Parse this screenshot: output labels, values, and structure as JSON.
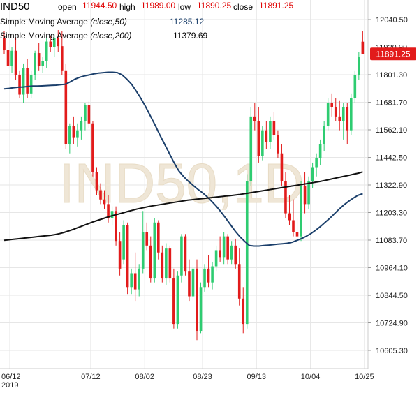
{
  "header": {
    "symbol": "IND50",
    "open_label": "open",
    "open_value": "11944.50",
    "high_label": "high",
    "high_value": "11989.00",
    "low_label": "low",
    "low_value": "11890.25",
    "close_label": "close",
    "close_value": "11891.25"
  },
  "indicators": [
    {
      "prefix": "Simple Moving Average ",
      "params": "(close,50)",
      "value": "11285.12",
      "color": "#1b3f6b"
    },
    {
      "prefix": "Simple Moving Average ",
      "params": "(close,200)",
      "value": "11379.69",
      "color": "#111111"
    }
  ],
  "watermark": "IND50,1D",
  "last_price_label": "11891.25",
  "colors": {
    "up": "#2ecc71",
    "down": "#e21b1b",
    "sma50": "#1b3f6b",
    "sma200": "#111111",
    "grid": "#e6e6e6",
    "price_tag": "#e21b1b"
  },
  "chart_data": {
    "type": "candlestick",
    "interval": "1D",
    "y_ticks": [
      "12040.50",
      "11920.90",
      "11801.30",
      "11681.70",
      "11562.10",
      "11442.50",
      "11322.90",
      "11203.30",
      "11083.70",
      "10964.10",
      "10844.50",
      "10724.90",
      "10605.30"
    ],
    "ylim": [
      10550,
      12120
    ],
    "x_ticks": [
      {
        "label": "06/12",
        "sub": "2019",
        "index": 0
      },
      {
        "label": "07/12",
        "index": 21
      },
      {
        "label": "08/02",
        "index": 35
      },
      {
        "label": "08/23",
        "index": 50
      },
      {
        "label": "09/13",
        "index": 64
      },
      {
        "label": "10/04",
        "index": 78
      },
      {
        "label": "10/25",
        "index": 92
      }
    ],
    "candles": [
      [
        11960,
        11990,
        11890,
        11910
      ],
      [
        11910,
        11925,
        11825,
        11840
      ],
      [
        11840,
        11920,
        11810,
        11905
      ],
      [
        11905,
        11960,
        11780,
        11800
      ],
      [
        11800,
        11820,
        11700,
        11715
      ],
      [
        11715,
        11850,
        11680,
        11830
      ],
      [
        11830,
        11870,
        11700,
        11720
      ],
      [
        11720,
        11820,
        11700,
        11800
      ],
      [
        11800,
        11905,
        11780,
        11895
      ],
      [
        11895,
        11940,
        11820,
        11840
      ],
      [
        11840,
        11880,
        11810,
        11860
      ],
      [
        11860,
        11960,
        11830,
        11945
      ],
      [
        11945,
        11970,
        11900,
        11920
      ],
      [
        11920,
        11975,
        11880,
        11960
      ],
      [
        11960,
        11995,
        11900,
        11925
      ],
      [
        11925,
        11990,
        11800,
        11820
      ],
      [
        11820,
        11850,
        11480,
        11500
      ],
      [
        11500,
        11590,
        11460,
        11580
      ],
      [
        11580,
        11620,
        11500,
        11530
      ],
      [
        11530,
        11590,
        11490,
        11560
      ],
      [
        11560,
        11620,
        11520,
        11600
      ],
      [
        11600,
        11680,
        11560,
        11670
      ],
      [
        11670,
        11685,
        11570,
        11590
      ],
      [
        11590,
        11600,
        11360,
        11380
      ],
      [
        11380,
        11400,
        11280,
        11300
      ],
      [
        11300,
        11330,
        11240,
        11260
      ],
      [
        11260,
        11300,
        11220,
        11240
      ],
      [
        11240,
        11280,
        11160,
        11180
      ],
      [
        11180,
        11230,
        11150,
        11210
      ],
      [
        11210,
        11230,
        11060,
        11080
      ],
      [
        11080,
        11120,
        10930,
        10960
      ],
      [
        11000,
        11170,
        10980,
        11150
      ],
      [
        11150,
        11160,
        10850,
        10880
      ],
      [
        10880,
        10960,
        10850,
        10940
      ],
      [
        10940,
        11030,
        10820,
        10870
      ],
      [
        10870,
        10980,
        10840,
        10960
      ],
      [
        10960,
        11210,
        10940,
        11120
      ],
      [
        11120,
        11160,
        11040,
        11060
      ],
      [
        11060,
        11100,
        10900,
        10920
      ],
      [
        10920,
        11180,
        10900,
        11160
      ],
      [
        11160,
        11170,
        11000,
        11030
      ],
      [
        11030,
        11060,
        10900,
        10920
      ],
      [
        10920,
        11070,
        10890,
        11050
      ],
      [
        11050,
        11060,
        10900,
        10920
      ],
      [
        10920,
        10960,
        10700,
        10720
      ],
      [
        10720,
        10950,
        10700,
        10930
      ],
      [
        10930,
        11110,
        10900,
        11100
      ],
      [
        11100,
        11110,
        10930,
        10950
      ],
      [
        10950,
        11000,
        10820,
        10840
      ],
      [
        10840,
        10980,
        10820,
        10960
      ],
      [
        10960,
        11000,
        10650,
        10690
      ],
      [
        10690,
        10900,
        10680,
        10880
      ],
      [
        10880,
        10980,
        10860,
        10960
      ],
      [
        10960,
        11020,
        10880,
        10900
      ],
      [
        10900,
        10990,
        10870,
        10970
      ],
      [
        10970,
        11060,
        10950,
        11040
      ],
      [
        11040,
        11100,
        10990,
        11010
      ],
      [
        11010,
        11120,
        10980,
        11100
      ],
      [
        11100,
        11110,
        10980,
        11000
      ],
      [
        11000,
        11080,
        10980,
        11060
      ],
      [
        11060,
        11090,
        10960,
        10980
      ],
      [
        10980,
        11050,
        10800,
        10830
      ],
      [
        10830,
        10880,
        10680,
        10720
      ],
      [
        10720,
        11370,
        10700,
        11340
      ],
      [
        11340,
        11660,
        11320,
        11620
      ],
      [
        11620,
        11680,
        11560,
        11600
      ],
      [
        11600,
        11660,
        11420,
        11450
      ],
      [
        11450,
        11580,
        11430,
        11560
      ],
      [
        11560,
        11600,
        11480,
        11510
      ],
      [
        11510,
        11620,
        11480,
        11600
      ],
      [
        11600,
        11640,
        11520,
        11540
      ],
      [
        11540,
        11560,
        11440,
        11460
      ],
      [
        11460,
        11500,
        11320,
        11340
      ],
      [
        11340,
        11380,
        11180,
        11200
      ],
      [
        11200,
        11280,
        11150,
        11170
      ],
      [
        11170,
        11260,
        11100,
        11120
      ],
      [
        11120,
        11180,
        11080,
        11100
      ],
      [
        11100,
        11340,
        11080,
        11320
      ],
      [
        11320,
        11380,
        11200,
        11240
      ],
      [
        11240,
        11360,
        11220,
        11340
      ],
      [
        11340,
        11420,
        11310,
        11400
      ],
      [
        11400,
        11460,
        11360,
        11440
      ],
      [
        11440,
        11520,
        11410,
        11500
      ],
      [
        11500,
        11600,
        11470,
        11580
      ],
      [
        11580,
        11700,
        11560,
        11680
      ],
      [
        11680,
        11720,
        11620,
        11660
      ],
      [
        11660,
        11700,
        11600,
        11620
      ],
      [
        11620,
        11690,
        11560,
        11600
      ],
      [
        11600,
        11680,
        11520,
        11660
      ],
      [
        11660,
        11680,
        11500,
        11560
      ],
      [
        11560,
        11720,
        11540,
        11700
      ],
      [
        11700,
        11820,
        11680,
        11800
      ],
      [
        11800,
        11900,
        11780,
        11880
      ],
      [
        11944.5,
        11989,
        11890.25,
        11891.25
      ]
    ],
    "sma50": [
      11740,
      11742,
      11745,
      11747,
      11748,
      11750,
      11752,
      11752,
      11753,
      11754,
      11755,
      11756,
      11758,
      11760,
      11770,
      11782,
      11790,
      11796,
      11800,
      11805,
      11808,
      11810,
      11812,
      11812,
      11810,
      11800,
      11782,
      11760,
      11730,
      11698,
      11662,
      11622,
      11582,
      11540,
      11500,
      11460,
      11420,
      11385,
      11360,
      11340,
      11322,
      11305,
      11290,
      11272,
      11252,
      11230,
      11205,
      11178,
      11150,
      11122,
      11098,
      11078,
      11060,
      11058,
      11058,
      11060,
      11062,
      11064,
      11066,
      11068,
      11070,
      11074,
      11082,
      11090,
      11100,
      11112,
      11126,
      11142,
      11160,
      11178,
      11198,
      11218,
      11236,
      11252,
      11266,
      11278,
      11285
    ],
    "sma200": [
      11083,
      11085,
      11087,
      11089,
      11091,
      11093,
      11095,
      11097,
      11099,
      11101,
      11103,
      11105,
      11108,
      11112,
      11117,
      11123,
      11129,
      11136,
      11143,
      11150,
      11157,
      11164,
      11170,
      11176,
      11182,
      11188,
      11193,
      11198,
      11203,
      11208,
      11213,
      11218,
      11222,
      11226,
      11230,
      11233,
      11236,
      11239,
      11242,
      11245,
      11248,
      11251,
      11254,
      11257,
      11259,
      11261,
      11263,
      11265,
      11267,
      11269,
      11271,
      11273,
      11275,
      11277,
      11279,
      11281,
      11284,
      11287,
      11290,
      11293,
      11296,
      11299,
      11302,
      11305,
      11308,
      11311,
      11314,
      11317,
      11320,
      11323,
      11326,
      11329,
      11332,
      11335,
      11338,
      11342,
      11346,
      11350,
      11354,
      11358,
      11362,
      11366,
      11370,
      11374,
      11379.69
    ]
  }
}
